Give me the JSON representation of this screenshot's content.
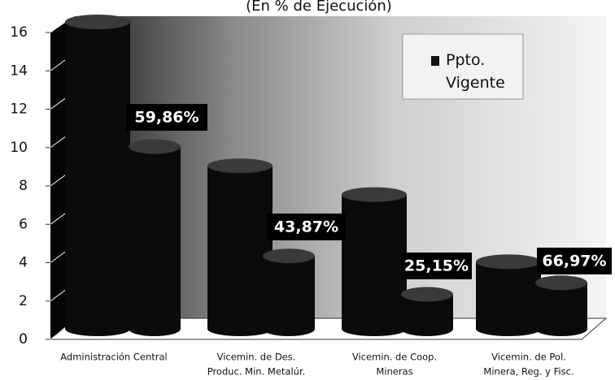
{
  "chart_data": {
    "type": "bar3d",
    "title": "(En % de Ejecución)",
    "categories": [
      [
        "Administración Central"
      ],
      [
        "Vicemin. de Des.",
        "Produc. Min. Metalúr."
      ],
      [
        "Vicemin. de Coop.",
        "Mineras"
      ],
      [
        "Vicemin. de Pol.",
        "Minera, Reg. y Fisc."
      ]
    ],
    "series": [
      {
        "name": "Ppto. Vigente",
        "color": "#0a0a0a",
        "values": [
          16,
          8.5,
          7,
          3.5
        ]
      },
      {
        "color": "#111111",
        "values": [
          9.5,
          3.8,
          1.8,
          2.4
        ]
      }
    ],
    "annotations": [
      "59,86%",
      "43,87%",
      "25,15%",
      "66,97%"
    ],
    "ylim": [
      0,
      16
    ],
    "yticks": [
      0,
      2,
      4,
      6,
      8,
      10,
      12,
      14,
      16
    ],
    "legend": "top-right"
  }
}
